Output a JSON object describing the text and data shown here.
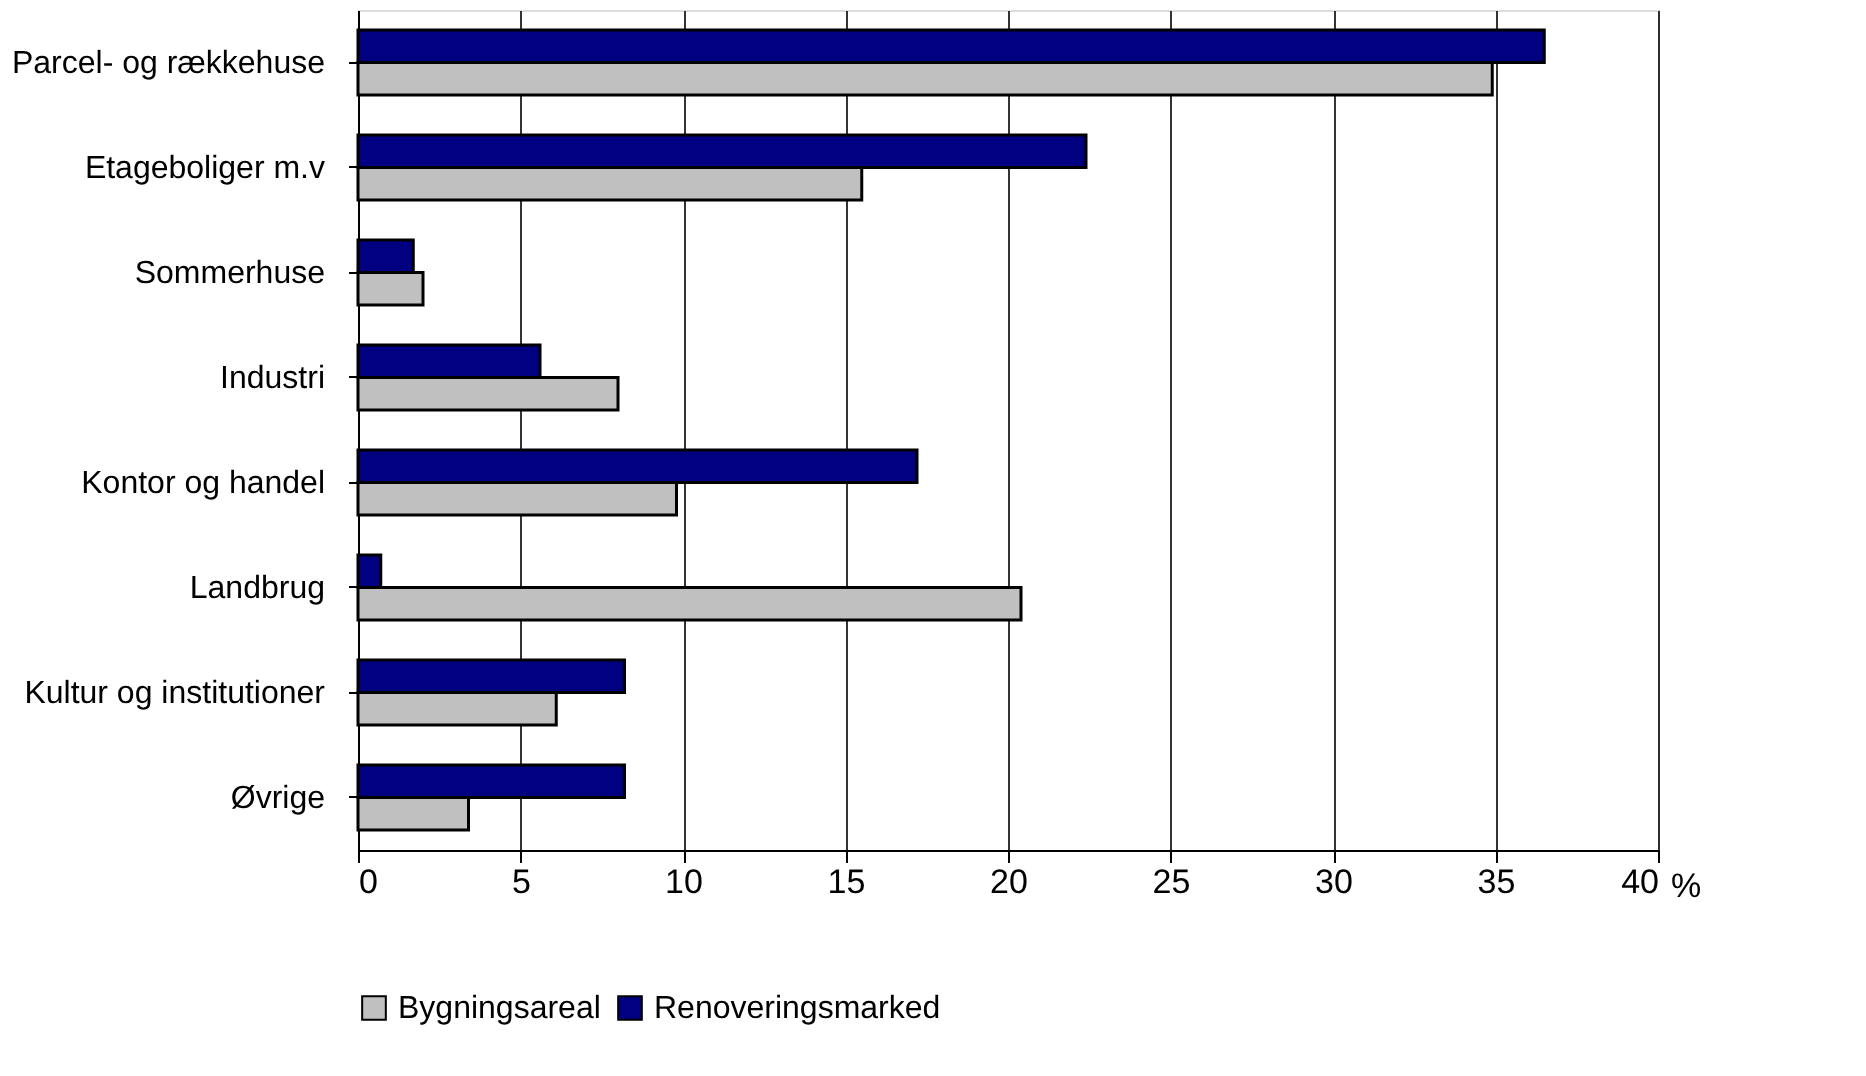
{
  "chart_data": {
    "type": "bar",
    "orientation": "horizontal",
    "xlabel": "%",
    "categories": [
      "Parcel- og rækkehuse",
      "Etageboliger m.v",
      "Sommerhuse",
      "Industri",
      "Kontor og handel",
      "Landbrug",
      "Kultur og institutioner",
      "Øvrige"
    ],
    "series": [
      {
        "name": "Bygningsareal",
        "color": "#c0c0c0",
        "values": [
          34.9,
          15.5,
          2.0,
          8.0,
          9.8,
          20.4,
          6.1,
          3.4
        ]
      },
      {
        "name": "Renoveringsmarked",
        "color": "#000080",
        "values": [
          36.5,
          22.4,
          1.7,
          5.6,
          17.2,
          0.7,
          8.2,
          8.2
        ]
      }
    ],
    "xlim": [
      0,
      40
    ],
    "xticks": [
      0,
      5,
      10,
      15,
      20,
      25,
      30,
      35,
      40
    ],
    "grid": "x",
    "legend": "bottom"
  }
}
